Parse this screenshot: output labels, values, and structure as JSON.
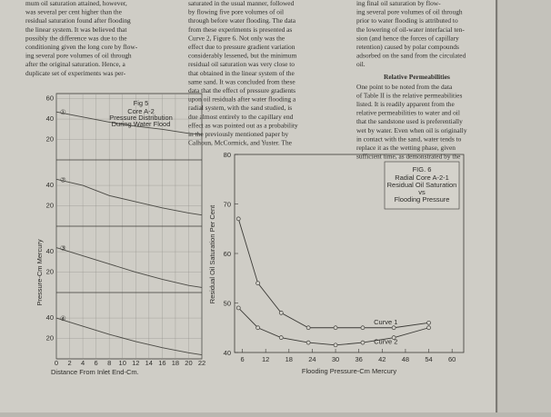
{
  "columns": [
    {
      "lines": [
        "mum oil saturation attained, however,",
        "was several per cent higher than the",
        "residual saturation found after flooding",
        "the linear system. It was believed that",
        "possibly the difference was due to the",
        "conditioning given the long core by flow-",
        "ing several pore volumes of oil through",
        "after the original saturation. Hence, a",
        "duplicate set of experiments was per-"
      ]
    },
    {
      "lines": [
        "saturated in the usual manner, followed",
        "by flowing five pore volumes of oil",
        "through before water flooding. The data",
        "from these experiments is presented as",
        "Curve 2, Figure 6. Not only was the",
        "effect due to pressure gradient variation",
        "considerably lessened, but the minimum",
        "residual oil saturation was very close to",
        "that obtained in the linear system of the",
        "same sand. It was concluded from these",
        "data that the effect of pressure gradients",
        "upon oil residuals after water flooding a",
        "radial system, with the sand studied, is",
        "due almost entirely to the capillary end",
        "effect as was pointed out as a probability",
        "in the previously mentioned paper by",
        "Calhoun, McCormick, and Yuster. The"
      ]
    },
    {
      "lines": [
        "ing final oil saturation by flow-",
        "ing several pore volumes of oil through",
        "prior to water flooding is attributed to",
        "the lowering of oil-water interfacial ten-",
        "sion (and hence the forces of capillary",
        "retention) caused by polar compounds",
        "adsorbed on the sand from the circulated",
        "oil."
      ],
      "heading": "Relative Permeabilities",
      "lines2": [
        "One point to be noted from the data",
        "of Table II is the relative permeabilities",
        "listed. It is readily apparent from the",
        "relative permeabilities to water and oil",
        "that the sandstone used is preferentially",
        "wet by water. Even when oil is originally",
        "in contact with the sand, water tends to",
        "replace it as the wetting phase, given",
        "sufficient time, as demonstrated by the"
      ]
    }
  ],
  "fig5": {
    "title": "Fig 5",
    "notes": [
      "Core A-2",
      "Pressure Distribution",
      "During Water Flood"
    ],
    "ylabel": "Pressure-Cm Mercury",
    "xlabel": "Distance From Inlet End-Cm.",
    "xlim": [
      0,
      22
    ],
    "xticks": [
      0,
      2,
      4,
      6,
      8,
      10,
      12,
      14,
      16,
      18,
      20,
      22
    ],
    "x": [
      0,
      4,
      8,
      12,
      16,
      20,
      22
    ],
    "panels": [
      {
        "label": "①",
        "ylim": [
          0,
          65
        ],
        "yticks": [
          20,
          40,
          60
        ],
        "values": [
          47,
          42,
          37,
          33,
          30,
          26,
          25
        ]
      },
      {
        "label": "②",
        "ylim": [
          0,
          65
        ],
        "yticks": [
          20,
          40
        ],
        "values": [
          46,
          40,
          30,
          24,
          18,
          13,
          11
        ]
      },
      {
        "label": "③",
        "ylim": [
          0,
          65
        ],
        "yticks": [
          20,
          40
        ],
        "values": [
          44,
          36,
          28,
          20,
          13,
          7,
          5
        ]
      },
      {
        "label": "④",
        "ylim": [
          0,
          65
        ],
        "yticks": [
          20,
          40
        ],
        "values": [
          40,
          32,
          24,
          17,
          11,
          6,
          4
        ]
      }
    ]
  },
  "fig6": {
    "title": "FIG. 6",
    "notes": [
      "Radial Core A-2-1",
      "Residual Oil Saturation",
      "vs",
      "Flooding Pressure"
    ],
    "ylabel": "Residual Oil Saturation Per Cent",
    "xlabel": "Flooding Pressure-Cm Mercury",
    "xlim": [
      4,
      63
    ],
    "ylim": [
      40,
      80
    ],
    "xticks": [
      6,
      12,
      18,
      24,
      30,
      36,
      42,
      48,
      54,
      60
    ],
    "yticks": [
      40,
      50,
      60,
      70,
      80
    ],
    "series": [
      {
        "name": "Curve 1",
        "x": [
          5,
          10,
          16,
          23,
          30,
          37,
          45,
          54
        ],
        "values": [
          67,
          54,
          48,
          45,
          45,
          45,
          45,
          46
        ]
      },
      {
        "name": "Curve 2",
        "x": [
          5,
          10,
          16,
          23,
          30,
          37,
          45,
          54
        ],
        "values": [
          49,
          45,
          43,
          42,
          41.5,
          42,
          43,
          45
        ]
      }
    ]
  }
}
